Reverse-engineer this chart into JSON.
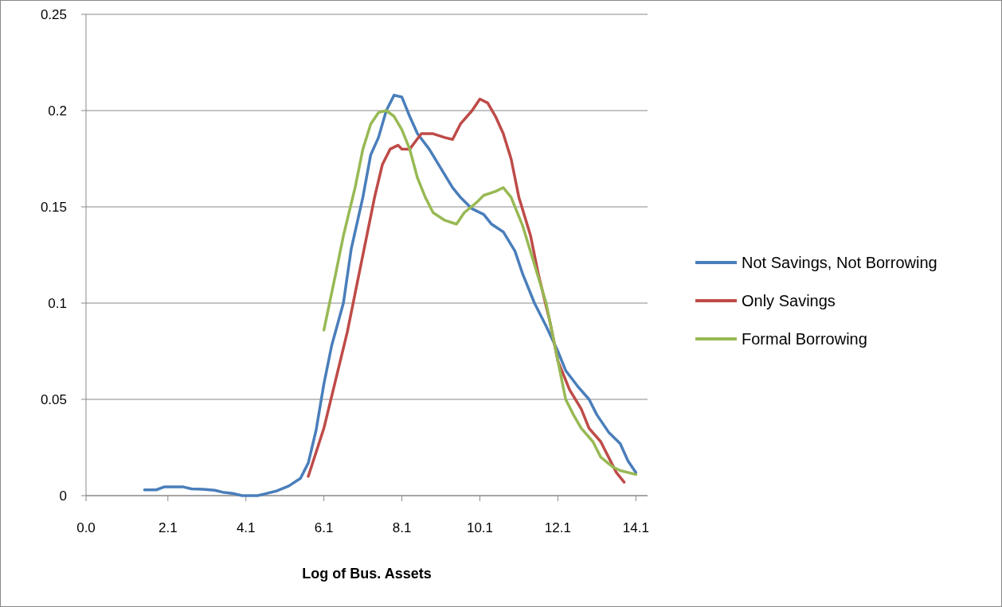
{
  "chart_data": {
    "type": "line",
    "xlabel": "Log of Bus. Assets",
    "xlim": [
      0,
      14.4
    ],
    "xticks": [
      {
        "value": 0,
        "label": "0.0"
      },
      2.1,
      4.1,
      6.1,
      8.1,
      10.1,
      12.1,
      14.1
    ],
    "ylim": [
      0,
      0.25
    ],
    "yticks": [
      0,
      0.05,
      0.1,
      0.15,
      0.2,
      0.25
    ],
    "grid": "y",
    "legend": "right",
    "series": [
      {
        "name": "Not Savings, Not Borrowing",
        "color": "#4a7ebb",
        "x": [
          1.5,
          1.8,
          2.0,
          2.5,
          2.7,
          3.0,
          3.3,
          3.5,
          3.8,
          4.0,
          4.4,
          4.6,
          4.9,
          5.2,
          5.5,
          5.7,
          5.9,
          6.1,
          6.3,
          6.6,
          6.8,
          7.1,
          7.3,
          7.5,
          7.7,
          7.9,
          8.1,
          8.3,
          8.5,
          8.8,
          9.1,
          9.4,
          9.6,
          9.9,
          10.2,
          10.4,
          10.7,
          11.0,
          11.2,
          11.5,
          11.8,
          12.1,
          12.3,
          12.6,
          12.9,
          13.1,
          13.4,
          13.7,
          13.9,
          14.1
        ],
        "values": [
          0.003,
          0.003,
          0.0045,
          0.0045,
          0.0035,
          0.0033,
          0.0028,
          0.0018,
          0.001,
          0,
          0,
          0.001,
          0.0025,
          0.005,
          0.009,
          0.017,
          0.034,
          0.058,
          0.078,
          0.1,
          0.128,
          0.155,
          0.177,
          0.186,
          0.2,
          0.208,
          0.207,
          0.197,
          0.188,
          0.18,
          0.17,
          0.16,
          0.155,
          0.149,
          0.146,
          0.141,
          0.137,
          0.127,
          0.115,
          0.1,
          0.088,
          0.075,
          0.065,
          0.057,
          0.05,
          0.042,
          0.033,
          0.027,
          0.018,
          0.012
        ]
      },
      {
        "name": "Only Savings",
        "color": "#be4b48",
        "x": [
          5.7,
          6.1,
          6.4,
          6.7,
          7.0,
          7.2,
          7.4,
          7.6,
          7.8,
          8.0,
          8.1,
          8.3,
          8.6,
          8.9,
          9.2,
          9.4,
          9.6,
          9.9,
          10.1,
          10.3,
          10.5,
          10.7,
          10.9,
          11.1,
          11.4,
          11.6,
          11.9,
          12.1,
          12.4,
          12.7,
          12.9,
          13.2,
          13.4,
          13.6,
          13.8
        ],
        "values": [
          0.01,
          0.035,
          0.06,
          0.085,
          0.115,
          0.135,
          0.155,
          0.172,
          0.18,
          0.182,
          0.18,
          0.18,
          0.188,
          0.188,
          0.186,
          0.185,
          0.193,
          0.2,
          0.206,
          0.204,
          0.197,
          0.188,
          0.175,
          0.155,
          0.135,
          0.115,
          0.09,
          0.07,
          0.055,
          0.045,
          0.035,
          0.028,
          0.02,
          0.012,
          0.007
        ]
      },
      {
        "name": "Formal Borrowing",
        "color": "#98b954",
        "x": [
          6.1,
          6.4,
          6.6,
          6.9,
          7.1,
          7.3,
          7.5,
          7.7,
          7.9,
          8.1,
          8.3,
          8.5,
          8.7,
          8.9,
          9.2,
          9.5,
          9.7,
          10.0,
          10.2,
          10.5,
          10.7,
          10.9,
          11.2,
          11.5,
          11.8,
          12.0,
          12.3,
          12.5,
          12.7,
          13.0,
          13.2,
          13.5,
          13.7,
          14.1
        ],
        "values": [
          0.086,
          0.115,
          0.135,
          0.16,
          0.18,
          0.193,
          0.199,
          0.2,
          0.197,
          0.19,
          0.18,
          0.165,
          0.155,
          0.147,
          0.143,
          0.141,
          0.147,
          0.152,
          0.156,
          0.158,
          0.16,
          0.155,
          0.14,
          0.12,
          0.1,
          0.08,
          0.05,
          0.042,
          0.035,
          0.028,
          0.02,
          0.015,
          0.013,
          0.011
        ]
      }
    ]
  }
}
